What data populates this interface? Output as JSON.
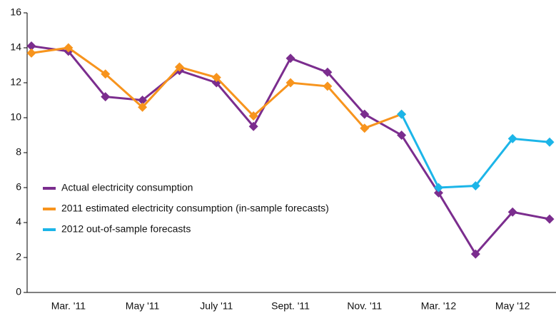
{
  "chart_data": {
    "type": "line",
    "categories": [
      null,
      "Mar. '11",
      null,
      "May '11",
      null,
      "July '11",
      null,
      "Sept. '11",
      null,
      "Nov. '11",
      null,
      "Mar. '12",
      null,
      "May '12",
      null
    ],
    "series": [
      {
        "name": "Actual electricity consumption",
        "color": "#7b2d8e",
        "values": [
          14.1,
          13.8,
          11.2,
          11.0,
          12.7,
          12.0,
          9.5,
          13.4,
          12.6,
          10.2,
          9.0,
          5.7,
          2.2,
          4.6,
          4.2
        ]
      },
      {
        "name": "2011 estimated electricity consumption (in-sample forecasts)",
        "color": "#f7941d",
        "values": [
          13.7,
          14.0,
          12.5,
          10.6,
          12.9,
          12.3,
          10.1,
          12.0,
          11.8,
          9.4,
          10.2,
          null,
          null,
          null,
          null
        ]
      },
      {
        "name": "2012 out-of-sample forecasts",
        "color": "#1cb5e8",
        "values": [
          null,
          null,
          null,
          null,
          null,
          null,
          null,
          null,
          null,
          null,
          10.2,
          6.0,
          6.1,
          8.8,
          8.6
        ]
      }
    ],
    "ylim": [
      0,
      16
    ],
    "yticks": [
      0,
      2,
      4,
      6,
      8,
      10,
      12,
      14,
      16
    ],
    "legend": "lower left"
  }
}
